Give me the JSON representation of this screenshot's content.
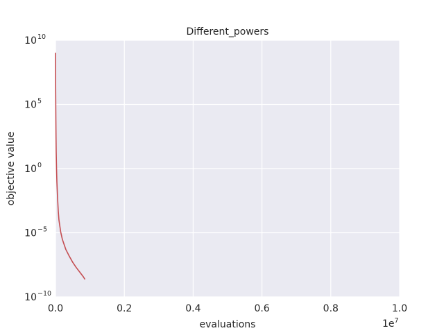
{
  "chart_data": {
    "type": "line",
    "title": "Different_powers",
    "xlabel": "evaluations",
    "ylabel": "objective value",
    "x_offset_label": {
      "base": "1e",
      "exp": "7"
    },
    "xlim": [
      0,
      10000000
    ],
    "ylim": [
      1e-10,
      10000000000.0
    ],
    "yscale": "log",
    "grid": true,
    "x_ticks": [
      {
        "value": 0,
        "label": "0.0"
      },
      {
        "value": 2000000,
        "label": "0.2"
      },
      {
        "value": 4000000,
        "label": "0.4"
      },
      {
        "value": 6000000,
        "label": "0.6"
      },
      {
        "value": 8000000,
        "label": "0.8"
      },
      {
        "value": 10000000,
        "label": "1.0"
      }
    ],
    "y_ticks": [
      {
        "value": 10000000000.0,
        "base": "10",
        "exp": "10"
      },
      {
        "value": 100000.0,
        "base": "10",
        "exp": "5"
      },
      {
        "value": 1,
        "base": "10",
        "exp": "0"
      },
      {
        "value": 1e-05,
        "base": "10",
        "exp": "−5"
      },
      {
        "value": 1e-10,
        "base": "10",
        "exp": "−10"
      }
    ],
    "colors": {
      "background": "#eaeaf2",
      "grid": "#ffffff",
      "line": "#c44e52"
    },
    "series": [
      {
        "x": [
          0,
          5000,
          10000,
          15000,
          20000,
          30000,
          40000,
          60000,
          80000,
          100000,
          150000,
          200000,
          300000,
          400000,
          500000,
          600000,
          700000,
          800000,
          850000
        ],
        "y": [
          1000000000.0,
          1000000.0,
          10000.0,
          300,
          20,
          1,
          0.1,
          0.005,
          0.0005,
          0.0001,
          1.2e-05,
          3e-06,
          5e-07,
          1.5e-07,
          5e-08,
          2e-08,
          9e-09,
          4e-09,
          2.5e-09
        ]
      }
    ]
  }
}
